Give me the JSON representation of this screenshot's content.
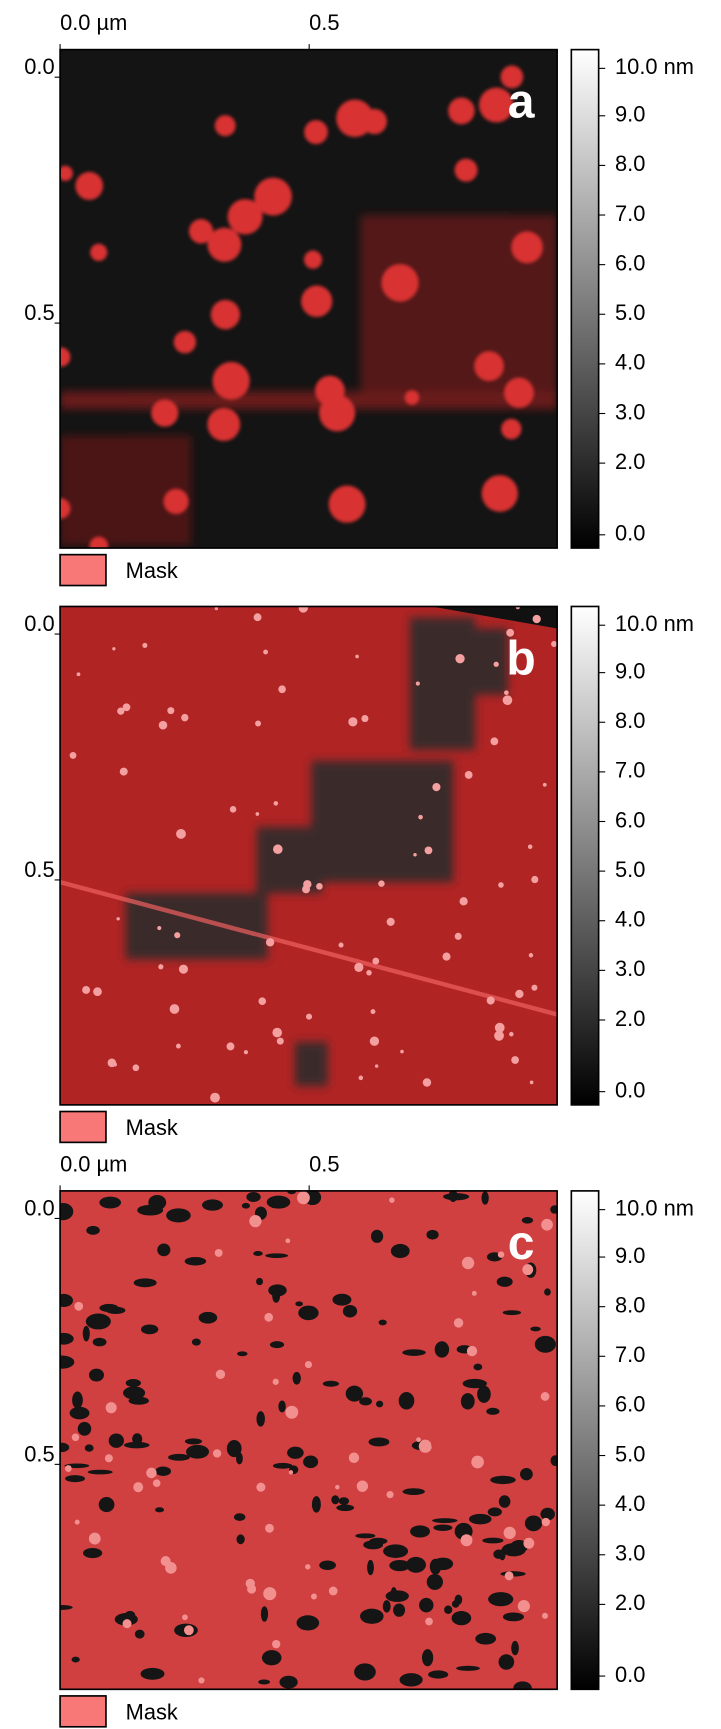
{
  "panels": [
    {
      "letter": "a",
      "x_labels": [
        "0.0 µm",
        "0.5"
      ],
      "y_labels": [
        "0.0",
        "0.5"
      ],
      "colorbar_labels": [
        "10.0 nm",
        "9.0",
        "8.0",
        "7.0",
        "6.0",
        "5.0",
        "4.0",
        "3.0",
        "2.0",
        "0.0"
      ],
      "legend": "Mask"
    },
    {
      "letter": "b",
      "y_labels": [
        "0.0",
        "0.5"
      ],
      "colorbar_labels": [
        "10.0 nm",
        "9.0",
        "8.0",
        "7.0",
        "6.0",
        "5.0",
        "4.0",
        "3.0",
        "2.0",
        "0.0"
      ],
      "legend": "Mask"
    },
    {
      "letter": "c",
      "x_labels": [
        "0.0 µm",
        "0.5"
      ],
      "y_labels": [
        "0.0",
        "0.5"
      ],
      "colorbar_labels": [
        "10.0 nm",
        "9.0",
        "8.0",
        "7.0",
        "6.0",
        "5.0",
        "4.0",
        "3.0",
        "2.0",
        "0.0"
      ],
      "legend": "Mask"
    }
  ]
}
